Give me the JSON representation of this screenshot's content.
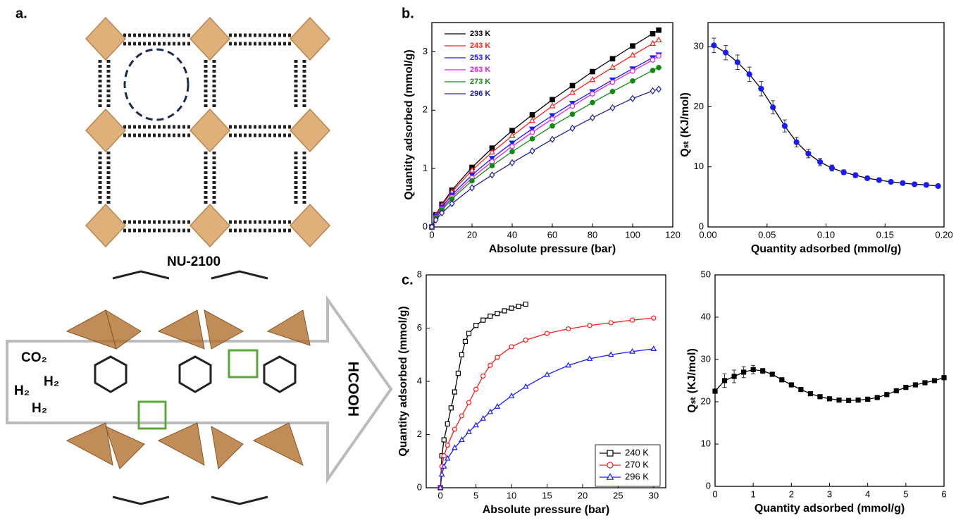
{
  "panel_labels": [
    "a.",
    "b.",
    "c."
  ],
  "structure": {
    "name": "NU-2100",
    "gases": [
      "CO₂",
      "H₂",
      "H₂",
      "H₂"
    ],
    "product": "HCOOH"
  },
  "chart_data": [
    {
      "type": "line",
      "xlabel": "Absolute pressure (bar)",
      "ylabel": "Quantity adsorbed (mmol/g)",
      "xlim": [
        0,
        120
      ],
      "xticks": [
        0,
        20,
        40,
        60,
        80,
        100,
        120
      ],
      "ylim": [
        0,
        3.5
      ],
      "yticks": [
        0,
        1,
        2,
        3
      ],
      "legend": "upper left",
      "series": [
        {
          "name": "233 K",
          "color": "#000000",
          "marker": "square",
          "filled": true,
          "x": [
            0,
            2,
            5,
            10,
            20,
            30,
            40,
            50,
            60,
            70,
            80,
            90,
            100,
            110,
            113
          ],
          "values": [
            0,
            0.21,
            0.39,
            0.63,
            1.02,
            1.35,
            1.65,
            1.92,
            2.18,
            2.42,
            2.66,
            2.88,
            3.1,
            3.31,
            3.37
          ]
        },
        {
          "name": "243 K",
          "color": "#ff2020",
          "marker": "triangle",
          "filled": false,
          "x": [
            0,
            2,
            5,
            10,
            20,
            30,
            40,
            50,
            60,
            70,
            80,
            90,
            100,
            110,
            113
          ],
          "values": [
            0,
            0.2,
            0.37,
            0.6,
            0.97,
            1.28,
            1.56,
            1.82,
            2.07,
            2.3,
            2.52,
            2.73,
            2.94,
            3.14,
            3.2
          ]
        },
        {
          "name": "253 K",
          "color": "#1a1aff",
          "marker": "triangle-down",
          "filled": true,
          "x": [
            0,
            2,
            5,
            10,
            20,
            30,
            40,
            50,
            60,
            70,
            80,
            90,
            100,
            110,
            113
          ],
          "values": [
            0,
            0.18,
            0.34,
            0.55,
            0.89,
            1.18,
            1.44,
            1.68,
            1.91,
            2.12,
            2.32,
            2.52,
            2.71,
            2.9,
            2.95
          ]
        },
        {
          "name": "263 K",
          "color": "#e020e0",
          "marker": "circle",
          "filled": false,
          "x": [
            0,
            2,
            5,
            10,
            20,
            30,
            40,
            50,
            60,
            70,
            80,
            90,
            100,
            110,
            113
          ],
          "values": [
            0,
            0.16,
            0.31,
            0.51,
            0.84,
            1.12,
            1.38,
            1.62,
            1.85,
            2.07,
            2.28,
            2.48,
            2.67,
            2.86,
            2.93
          ]
        },
        {
          "name": "273 K",
          "color": "#108a10",
          "marker": "circle",
          "filled": true,
          "x": [
            0,
            2,
            5,
            10,
            20,
            30,
            40,
            50,
            60,
            70,
            80,
            90,
            100,
            110,
            113
          ],
          "values": [
            0,
            0.15,
            0.29,
            0.48,
            0.79,
            1.05,
            1.29,
            1.51,
            1.73,
            1.93,
            2.13,
            2.32,
            2.5,
            2.68,
            2.73
          ]
        },
        {
          "name": "296 K",
          "color": "#2020a0",
          "marker": "diamond",
          "filled": false,
          "x": [
            0,
            2,
            5,
            10,
            20,
            30,
            40,
            50,
            60,
            70,
            80,
            90,
            100,
            110,
            113
          ],
          "values": [
            0,
            0.12,
            0.24,
            0.4,
            0.67,
            0.89,
            1.1,
            1.3,
            1.5,
            1.69,
            1.87,
            2.04,
            2.2,
            2.33,
            2.36
          ]
        }
      ]
    },
    {
      "type": "line",
      "xlabel": "Quantity adsorbed (mmol/g)",
      "ylabel": "Qₛₜ (KJ/mol)",
      "xlim": [
        0,
        0.2
      ],
      "xticks": [
        {
          "value": 0,
          "label": "0.00"
        },
        0.05,
        {
          "value": 0.1,
          "label": "0.10"
        },
        0.15,
        {
          "value": 0.2,
          "label": "0.20"
        }
      ],
      "ylim": [
        0,
        34
      ],
      "yticks": [
        0,
        10,
        20,
        30
      ],
      "series": [
        {
          "color": "#000000",
          "marker_color": "#1a1aff",
          "marker": "circle",
          "filled": true,
          "x": [
            0.005,
            0.015,
            0.025,
            0.035,
            0.045,
            0.055,
            0.065,
            0.075,
            0.085,
            0.095,
            0.105,
            0.115,
            0.125,
            0.135,
            0.145,
            0.155,
            0.165,
            0.175,
            0.185,
            0.195
          ],
          "values": [
            30.2,
            29.0,
            27.4,
            25.4,
            23.0,
            19.9,
            16.8,
            14.1,
            12.2,
            10.8,
            9.8,
            9.1,
            8.6,
            8.1,
            7.8,
            7.5,
            7.3,
            7.1,
            7.0,
            6.8
          ],
          "errors": [
            1.2,
            1.2,
            1.2,
            1.2,
            1.2,
            1.1,
            1.0,
            0.8,
            0.7,
            0.6,
            0.5,
            0.4,
            0.4,
            0.3,
            0.3,
            0.3,
            0.3,
            0.3,
            0.3,
            0.3
          ]
        }
      ]
    },
    {
      "type": "line",
      "xlabel": "Absolute pressure (bar)",
      "ylabel": "Quantity adsorbed (mmol/g)",
      "xlim": [
        -2,
        31.7
      ],
      "xticks": [
        0,
        5,
        10,
        15,
        20,
        25,
        30
      ],
      "ylim": [
        0,
        8
      ],
      "yticks": [
        0,
        2,
        4,
        6,
        8
      ],
      "legend": "lower right",
      "series": [
        {
          "name": "240 K",
          "color": "#000000",
          "marker": "square",
          "filled": false,
          "x": [
            0,
            0.2,
            0.5,
            1,
            1.5,
            2,
            2.5,
            3,
            3.5,
            4,
            5,
            6,
            7,
            8,
            9,
            10,
            11,
            12
          ],
          "values": [
            0,
            1.2,
            1.8,
            2.4,
            3.0,
            3.6,
            4.3,
            5.0,
            5.5,
            5.8,
            6.1,
            6.3,
            6.45,
            6.55,
            6.65,
            6.75,
            6.82,
            6.9
          ]
        },
        {
          "name": "270 K",
          "color": "#ff1a1a",
          "marker": "circle",
          "filled": false,
          "x": [
            0,
            0.2,
            0.5,
            1,
            2,
            3,
            4,
            5,
            6,
            7,
            8,
            10,
            12,
            15,
            18,
            21,
            24,
            27,
            30
          ],
          "values": [
            0,
            0.8,
            1.2,
            1.6,
            2.2,
            2.7,
            3.2,
            3.7,
            4.2,
            4.6,
            4.9,
            5.3,
            5.55,
            5.8,
            5.97,
            6.1,
            6.2,
            6.3,
            6.38
          ]
        },
        {
          "name": "296 K",
          "color": "#1a1aff",
          "marker": "triangle",
          "filled": false,
          "x": [
            0,
            0.2,
            0.5,
            1,
            2,
            3,
            4,
            5,
            6,
            7,
            8,
            10,
            12,
            15,
            18,
            21,
            24,
            27,
            30
          ],
          "values": [
            0,
            0.5,
            0.8,
            1.1,
            1.5,
            1.8,
            2.1,
            2.35,
            2.6,
            2.85,
            3.05,
            3.45,
            3.8,
            4.25,
            4.6,
            4.85,
            5.0,
            5.12,
            5.22
          ]
        }
      ]
    },
    {
      "type": "line",
      "xlabel": "Quantity adsorbed (mmol/g)",
      "ylabel": "Qₛₜ (KJ/mol)",
      "xlim": [
        0,
        6
      ],
      "xticks": [
        0,
        1,
        2,
        3,
        4,
        5,
        6
      ],
      "ylim": [
        0,
        50
      ],
      "yticks": [
        0,
        10,
        20,
        30,
        40,
        50
      ],
      "series": [
        {
          "color": "#000000",
          "marker": "square",
          "filled": true,
          "x": [
            0,
            0.25,
            0.5,
            0.75,
            1,
            1.25,
            1.5,
            1.75,
            2,
            2.25,
            2.5,
            2.75,
            3,
            3.25,
            3.5,
            3.75,
            4,
            4.25,
            4.5,
            4.75,
            5,
            5.25,
            5.5,
            5.75,
            6
          ],
          "values": [
            22.5,
            25.0,
            26.0,
            27.0,
            27.6,
            27.3,
            26.5,
            25.2,
            24.0,
            22.9,
            21.9,
            21.2,
            20.7,
            20.4,
            20.3,
            20.4,
            20.6,
            21.0,
            21.7,
            22.6,
            23.4,
            24.0,
            24.5,
            25.0,
            25.7
          ],
          "errors": [
            0.5,
            1.6,
            1.5,
            1.3,
            1.0,
            0.6,
            0.4,
            0.3,
            0.3,
            0.3,
            0.3,
            0.3,
            0.3,
            0.3,
            0.3,
            0.3,
            0.3,
            0.3,
            0.3,
            0.3,
            0.3,
            0.3,
            0.3,
            0.3,
            0.3
          ]
        }
      ]
    }
  ]
}
